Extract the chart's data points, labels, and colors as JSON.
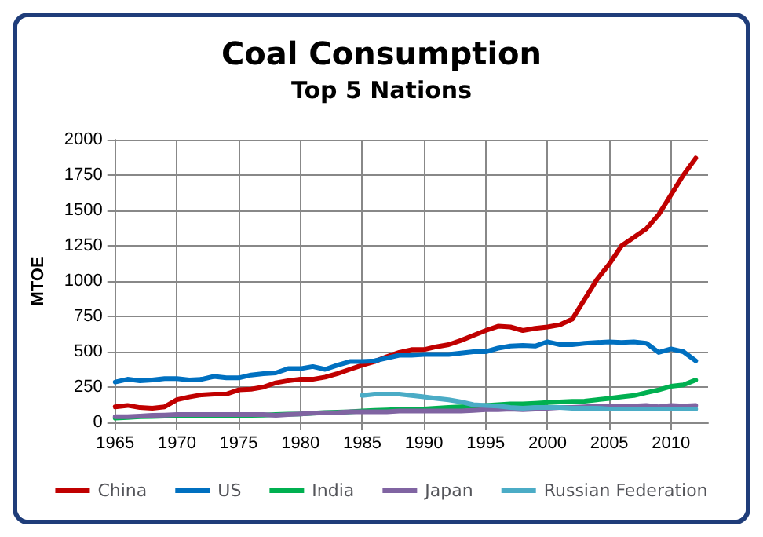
{
  "chart_data": {
    "type": "line",
    "title": "Coal Consumption",
    "subtitle": "Top 5 Nations",
    "ylabel": "MTOE",
    "x": [
      1965,
      1966,
      1967,
      1968,
      1969,
      1970,
      1971,
      1972,
      1973,
      1974,
      1975,
      1976,
      1977,
      1978,
      1979,
      1980,
      1981,
      1982,
      1983,
      1984,
      1985,
      1986,
      1987,
      1988,
      1989,
      1990,
      1991,
      1992,
      1993,
      1994,
      1995,
      1996,
      1997,
      1998,
      1999,
      2000,
      2001,
      2002,
      2003,
      2004,
      2005,
      2006,
      2007,
      2008,
      2009,
      2010,
      2011,
      2012
    ],
    "series": [
      {
        "name": "China",
        "color": "#c00000",
        "values": [
          110,
          120,
          105,
          100,
          110,
          160,
          180,
          195,
          200,
          200,
          230,
          235,
          250,
          280,
          295,
          305,
          305,
          320,
          345,
          375,
          405,
          430,
          465,
          495,
          515,
          515,
          535,
          550,
          580,
          615,
          650,
          680,
          675,
          650,
          665,
          675,
          690,
          730,
          870,
          1010,
          1120,
          1250,
          1310,
          1370,
          1470,
          1610,
          1750,
          1870
        ]
      },
      {
        "name": "US",
        "color": "#0070c0",
        "values": [
          285,
          305,
          295,
          300,
          310,
          310,
          300,
          305,
          325,
          315,
          315,
          335,
          345,
          350,
          380,
          380,
          395,
          375,
          405,
          430,
          430,
          435,
          455,
          475,
          475,
          480,
          480,
          480,
          490,
          500,
          500,
          525,
          540,
          545,
          540,
          570,
          550,
          550,
          560,
          565,
          570,
          565,
          570,
          560,
          495,
          520,
          500,
          435
        ]
      },
      {
        "name": "India",
        "color": "#00b050",
        "values": [
          30,
          35,
          40,
          42,
          45,
          45,
          45,
          45,
          45,
          45,
          48,
          50,
          52,
          55,
          58,
          60,
          65,
          70,
          72,
          75,
          80,
          85,
          88,
          92,
          95,
          95,
          100,
          105,
          110,
          115,
          120,
          125,
          130,
          130,
          135,
          140,
          145,
          148,
          150,
          160,
          170,
          180,
          190,
          210,
          230,
          255,
          265,
          300
        ]
      },
      {
        "name": "Japan",
        "color": "#8064a2",
        "values": [
          40,
          40,
          45,
          50,
          52,
          55,
          55,
          55,
          55,
          55,
          55,
          55,
          55,
          50,
          55,
          60,
          65,
          68,
          70,
          75,
          75,
          75,
          75,
          80,
          80,
          80,
          80,
          80,
          80,
          85,
          90,
          90,
          95,
          90,
          95,
          100,
          105,
          105,
          110,
          115,
          115,
          115,
          115,
          120,
          110,
          120,
          115,
          120
        ]
      },
      {
        "name": "Russian Federation",
        "color": "#4bacc6",
        "values": [
          null,
          null,
          null,
          null,
          null,
          null,
          null,
          null,
          null,
          null,
          null,
          null,
          null,
          null,
          null,
          null,
          null,
          null,
          null,
          null,
          190,
          200,
          200,
          200,
          190,
          180,
          170,
          160,
          145,
          125,
          120,
          115,
          105,
          100,
          105,
          105,
          105,
          100,
          100,
          100,
          95,
          95,
          95,
          95,
          95,
          95,
          95,
          95
        ]
      }
    ],
    "xlim": [
      1965,
      2013
    ],
    "xticks": [
      1965,
      1970,
      1975,
      1980,
      1985,
      1990,
      1995,
      2000,
      2005,
      2010
    ],
    "ylim": [
      0,
      2000
    ],
    "yticks": [
      0,
      250,
      500,
      750,
      1000,
      1250,
      1500,
      1750,
      2000
    ],
    "grid": true,
    "legend": "bottom",
    "marker": "none",
    "line_style": "solid"
  }
}
